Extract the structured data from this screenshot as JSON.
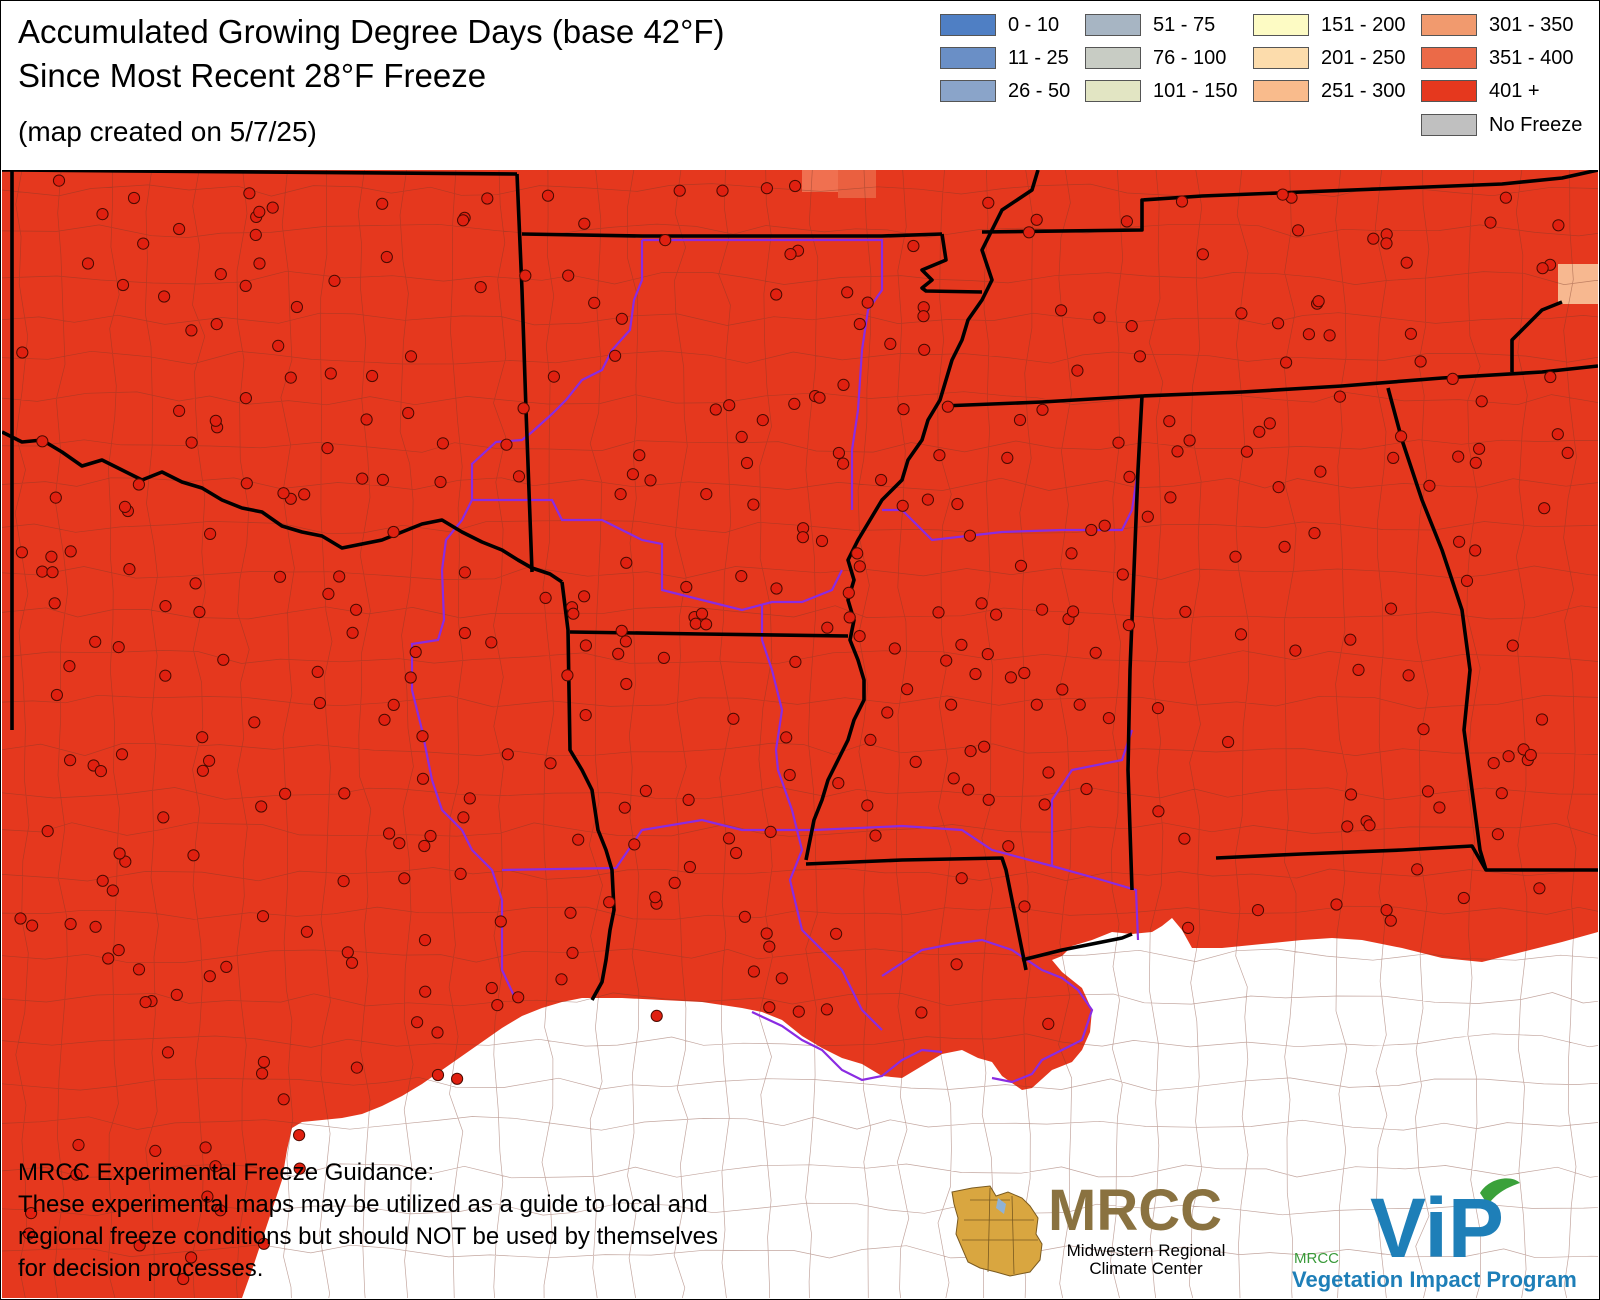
{
  "header": {
    "title_line1": "Accumulated Growing Degree Days (base 42°F)",
    "title_line2": "Since Most Recent 28°F Freeze",
    "created": "(map created on 5/7/25)"
  },
  "legend": [
    {
      "label": "0 - 10",
      "color": "#4f7fc4"
    },
    {
      "label": "11 - 25",
      "color": "#6a8fc6"
    },
    {
      "label": "26 - 50",
      "color": "#8aa4c9"
    },
    {
      "label": "51 - 75",
      "color": "#a7b5c3"
    },
    {
      "label": "76 - 100",
      "color": "#c8ccc4"
    },
    {
      "label": "101 - 150",
      "color": "#e2e5c3"
    },
    {
      "label": "151 - 200",
      "color": "#fdfbc4"
    },
    {
      "label": "201 - 250",
      "color": "#fcdcac"
    },
    {
      "label": "251 - 300",
      "color": "#f9bb8c"
    },
    {
      "label": "301 - 350",
      "color": "#f19a6e"
    },
    {
      "label": "351 - 400",
      "color": "#eb6a48"
    },
    {
      "label": "401 +",
      "color": "#e5381e"
    },
    {
      "label": "No Freeze",
      "color": "#c0c0c0"
    }
  ],
  "map": {
    "fill_color": "#e5381e",
    "state_border_color": "#000000",
    "county_border_color": "#7a3a2a",
    "region_outline_color": "#8a2be2",
    "station_color": "#e02010"
  },
  "note": {
    "heading": "MRCC Experimental Freeze Guidance:",
    "line1": "These experimental maps may be utilized as a guide to local and",
    "line2": "regional freeze conditions but should NOT be used by themselves",
    "line3": "for decision processes."
  },
  "logos": {
    "mrcc": {
      "name": "MRCC",
      "line1": "Midwestern Regional",
      "line2": "Climate Center"
    },
    "vip": {
      "small": "MRCC",
      "name": "ViP",
      "caption": "Vegetation Impact Program"
    }
  }
}
